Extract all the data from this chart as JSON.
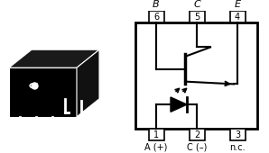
{
  "bg_color": "#ffffff",
  "box_color": "#000000",
  "pin_labels_top": [
    "B",
    "C",
    "E"
  ],
  "pin_labels_bottom": [
    "A (+)",
    "C (–)",
    "n.c."
  ],
  "pin_numbers_top": [
    "6",
    "5",
    "4"
  ],
  "pin_numbers_bottom": [
    "1",
    "2",
    "3"
  ],
  "figsize": [
    2.98,
    1.7
  ],
  "dpi": 100
}
